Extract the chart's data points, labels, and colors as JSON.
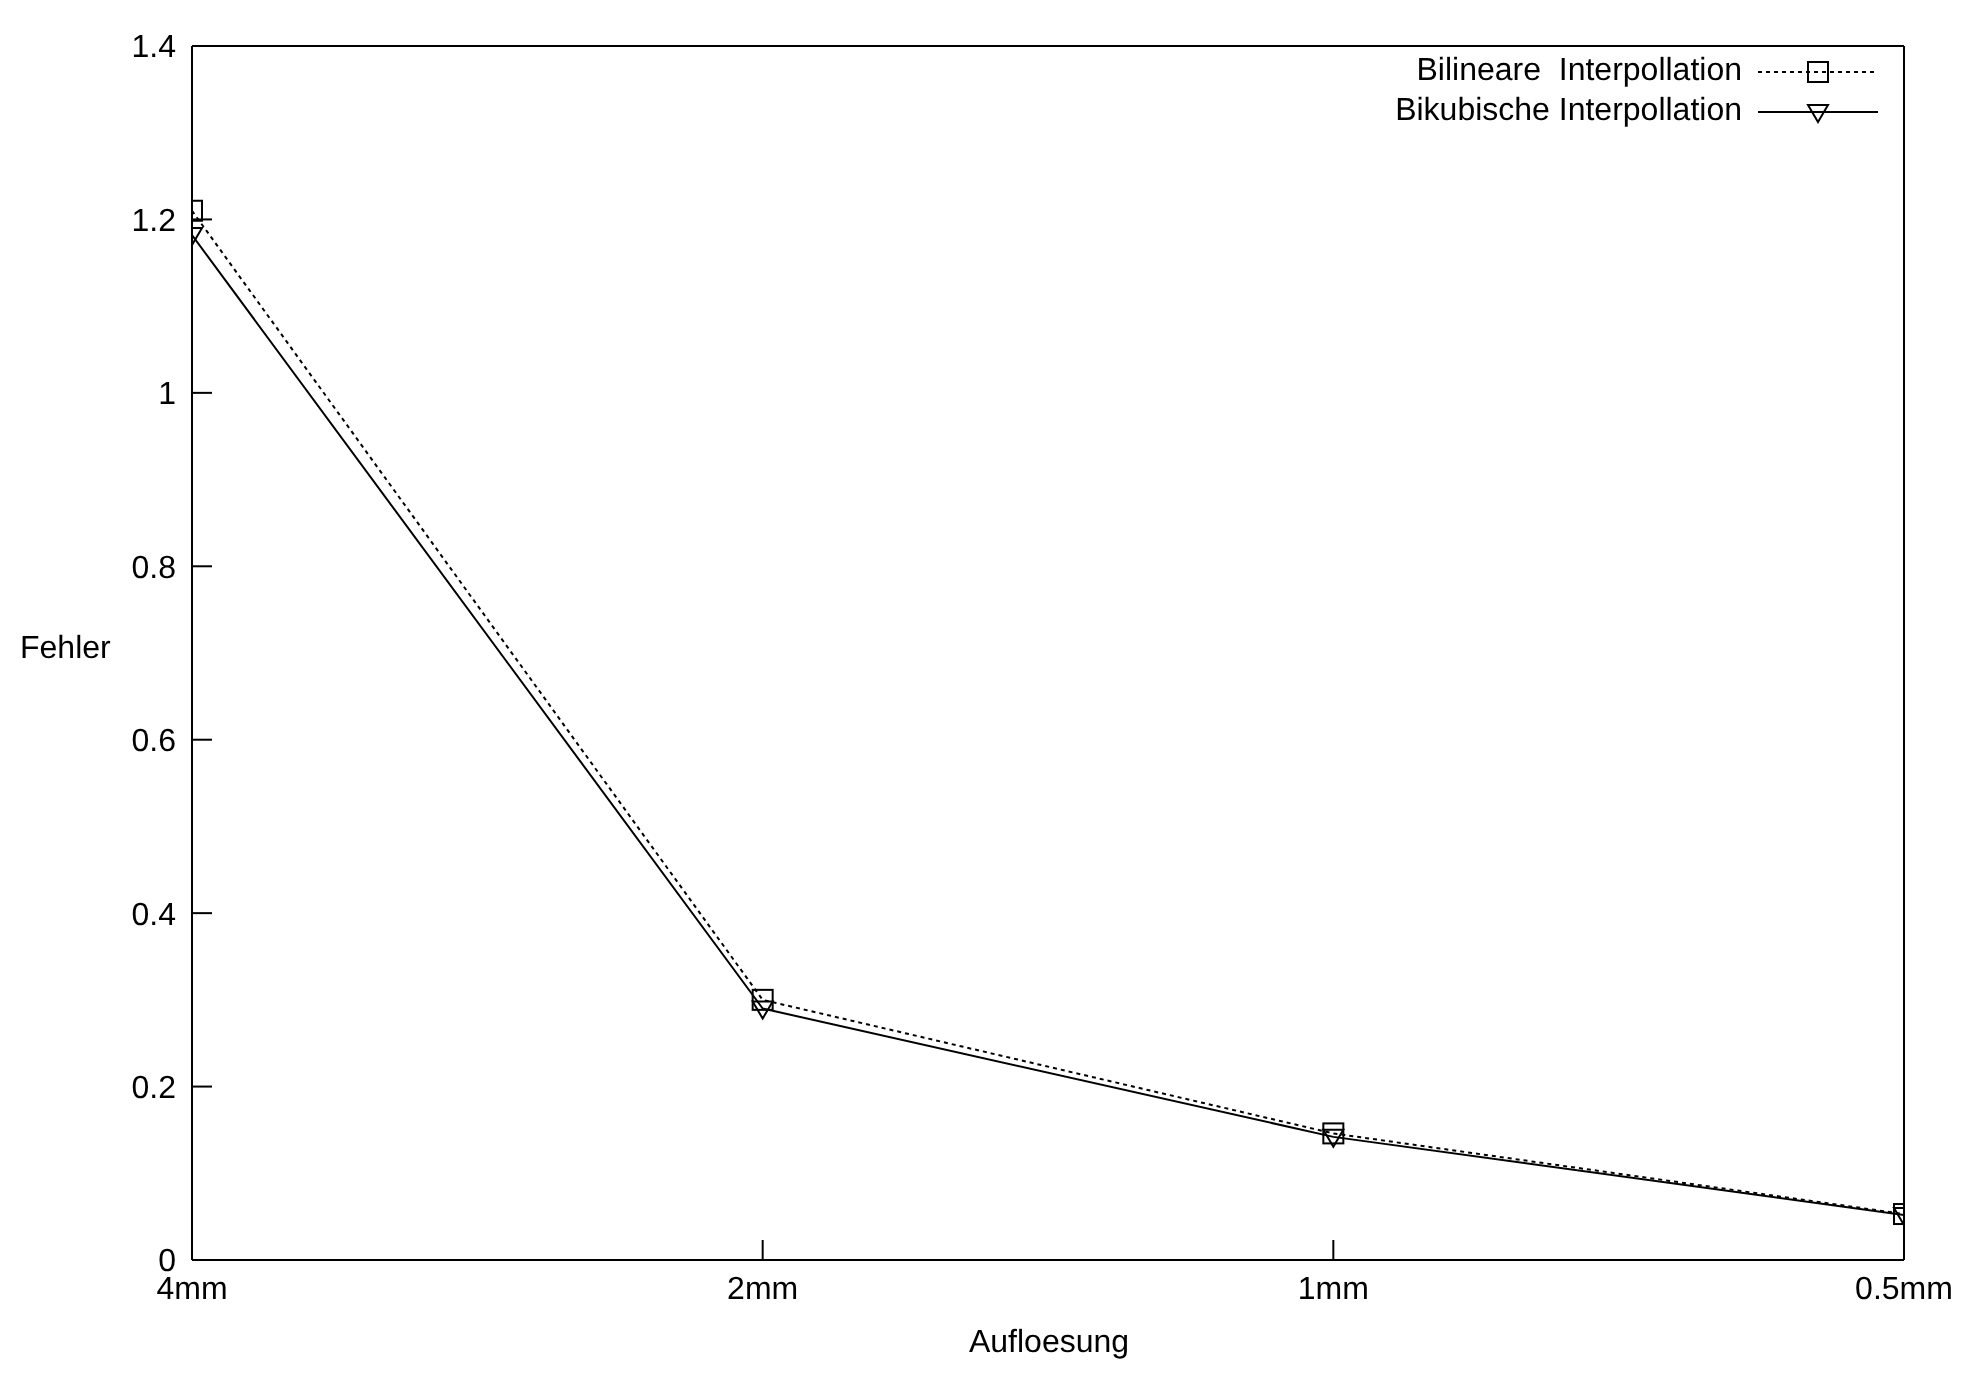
{
  "chart_data": {
    "type": "line",
    "xlabel": "Aufloesung",
    "ylabel": "Fehler",
    "categories": [
      "4mm",
      "2mm",
      "1mm",
      "0.5mm"
    ],
    "ylim": [
      0,
      1.4
    ],
    "yticks": [
      0,
      0.2,
      0.4,
      0.6,
      0.8,
      1,
      1.2,
      1.4
    ],
    "grid": false,
    "legend": "top right",
    "series": [
      {
        "name": "Bilineare  Interpollation",
        "color": "#000000",
        "marker": "square",
        "line_style": "dotted",
        "values": [
          1.21,
          0.3,
          0.146,
          0.053
        ]
      },
      {
        "name": "Bikubische Interpollation",
        "color": "#000000",
        "marker": "triangle",
        "line_style": "solid",
        "values": [
          1.182,
          0.29,
          0.142,
          0.052
        ]
      }
    ]
  }
}
